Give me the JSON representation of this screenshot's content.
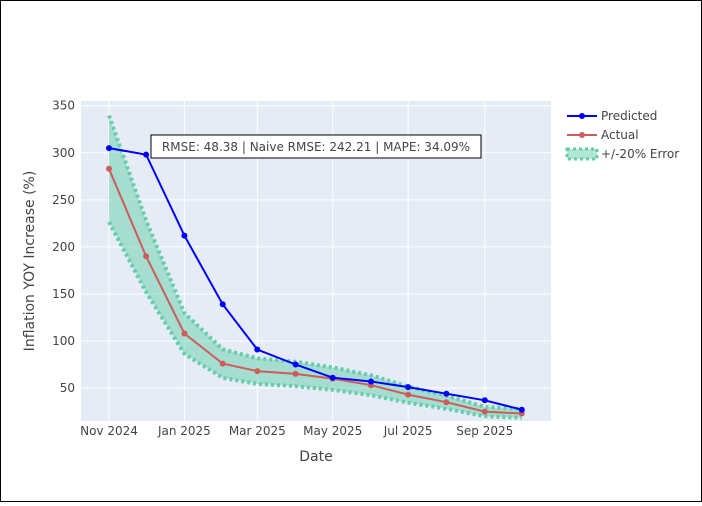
{
  "chart_data": {
    "type": "line",
    "xlabel": "Date",
    "ylabel": "Inflation YOY Increase (%)",
    "x_tick_labels": [
      "Nov 2024",
      "Jan 2025",
      "Mar 2025",
      "May 2025",
      "Jul 2025",
      "Sep 2025"
    ],
    "y_tick_labels": [
      "50",
      "100",
      "150",
      "200",
      "250",
      "300",
      "350"
    ],
    "y_ticks": [
      50,
      100,
      150,
      200,
      250,
      300,
      350
    ],
    "ylim": [
      15,
      355
    ],
    "x": [
      "2024-11-01",
      "2024-12-01",
      "2025-01-01",
      "2025-02-01",
      "2025-03-01",
      "2025-04-01",
      "2025-05-01",
      "2025-06-01",
      "2025-07-01",
      "2025-08-01",
      "2025-09-01",
      "2025-10-01"
    ],
    "series": [
      {
        "name": "Predicted",
        "color": "#0000ff",
        "values": [
          305,
          298,
          212,
          139,
          91,
          75,
          61,
          57,
          51,
          44,
          37,
          27
        ]
      },
      {
        "name": "Actual",
        "color": "#cd5c5c",
        "values": [
          283,
          190,
          108,
          76,
          68,
          65,
          60,
          53,
          43,
          35,
          25,
          23
        ]
      }
    ],
    "band": {
      "name": "+/-20% Error",
      "color": "#66cdaa",
      "fill": "rgba(102,205,170,0.5)",
      "upper": [
        339.6,
        228,
        129.6,
        91.2,
        81.6,
        78,
        72,
        63.6,
        51.6,
        42,
        30,
        27.6
      ],
      "lower": [
        226.4,
        152,
        86.4,
        60.8,
        54.4,
        52,
        48,
        42.4,
        34.4,
        28,
        20,
        18.4
      ]
    },
    "annotation": "RMSE: 48.38 | Naive RMSE: 242.21 | MAPE: 34.09%",
    "legend_position": "top-right",
    "grid": true,
    "plot_background": "#e5ecf6"
  }
}
